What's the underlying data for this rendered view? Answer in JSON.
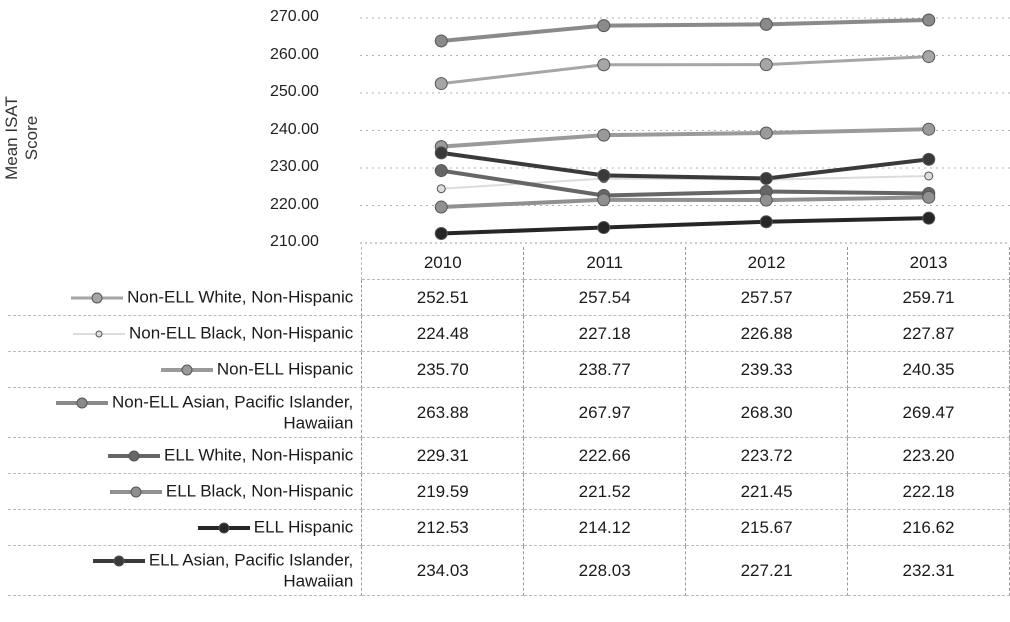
{
  "chart_data": {
    "type": "line",
    "ylabel": "Mean ISAT Score",
    "ylim": [
      210,
      270
    ],
    "yticks": [
      "210.00",
      "220.00",
      "230.00",
      "240.00",
      "250.00",
      "260.00",
      "270.00"
    ],
    "categories": [
      "2010",
      "2011",
      "2012",
      "2013"
    ],
    "grid": true,
    "legend": "data-table",
    "series": [
      {
        "name": "Non-ELL White, Non-Hispanic",
        "values": [
          252.51,
          257.54,
          257.57,
          259.71
        ],
        "color": "#a6a6a6",
        "width": 3
      },
      {
        "name": "Non-ELL Black, Non-Hispanic",
        "values": [
          224.48,
          227.18,
          226.88,
          227.87
        ],
        "color": "#dcdcdc",
        "width": 2
      },
      {
        "name": "Non-ELL Hispanic",
        "values": [
          235.7,
          238.77,
          239.33,
          240.35
        ],
        "color": "#9a9a9a",
        "width": 4
      },
      {
        "name": "Non-ELL Asian, Pacific Islander, Hawaiian",
        "values": [
          263.88,
          267.97,
          268.3,
          269.47
        ],
        "color": "#8a8a8a",
        "width": 4
      },
      {
        "name": "ELL White, Non-Hispanic",
        "values": [
          229.31,
          222.66,
          223.72,
          223.2
        ],
        "color": "#666666",
        "width": 4
      },
      {
        "name": "ELL Black, Non-Hispanic",
        "values": [
          219.59,
          221.52,
          221.45,
          222.18
        ],
        "color": "#909090",
        "width": 4
      },
      {
        "name": "ELL Hispanic",
        "values": [
          212.53,
          214.12,
          215.67,
          216.62
        ],
        "color": "#262626",
        "width": 4
      },
      {
        "name": "ELL Asian, Pacific Islander, Hawaiian",
        "values": [
          234.03,
          228.03,
          227.21,
          232.31
        ],
        "color": "#3a3a3a",
        "width": 4
      }
    ],
    "table": {
      "rows": [
        {
          "label_lines": [
            "Non-ELL White, Non-Hispanic"
          ],
          "values": [
            "252.51",
            "257.54",
            "257.57",
            "259.71"
          ]
        },
        {
          "label_lines": [
            "Non-ELL Black, Non-Hispanic"
          ],
          "values": [
            "224.48",
            "227.18",
            "226.88",
            "227.87"
          ]
        },
        {
          "label_lines": [
            "Non-ELL Hispanic"
          ],
          "values": [
            "235.70",
            "238.77",
            "239.33",
            "240.35"
          ]
        },
        {
          "label_lines": [
            "Non-ELL Asian, Pacific Islander,",
            "Hawaiian"
          ],
          "values": [
            "263.88",
            "267.97",
            "268.30",
            "269.47"
          ]
        },
        {
          "label_lines": [
            "ELL White, Non-Hispanic"
          ],
          "values": [
            "229.31",
            "222.66",
            "223.72",
            "223.20"
          ]
        },
        {
          "label_lines": [
            "ELL Black, Non-Hispanic"
          ],
          "values": [
            "219.59",
            "221.52",
            "221.45",
            "222.18"
          ]
        },
        {
          "label_lines": [
            "ELL Hispanic"
          ],
          "values": [
            "212.53",
            "214.12",
            "215.67",
            "216.62"
          ]
        },
        {
          "label_lines": [
            "ELL Asian, Pacific Islander,",
            "Hawaiian"
          ],
          "values": [
            "234.03",
            "228.03",
            "227.21",
            "232.31"
          ]
        }
      ]
    }
  }
}
